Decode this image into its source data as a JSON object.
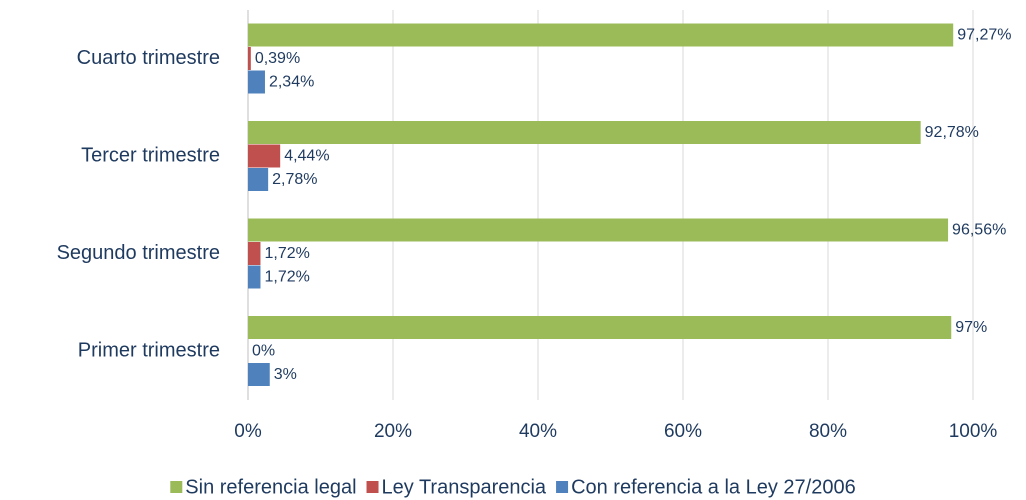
{
  "chart_data": {
    "type": "hbar",
    "categories": [
      "Primer trimestre",
      "Segundo trimestre",
      "Tercer trimestre",
      "Cuarto trimestre"
    ],
    "series": [
      {
        "name": "Sin referencia legal",
        "color": "#9bbb59",
        "values": [
          97,
          96.56,
          92.78,
          97.27
        ],
        "value_labels": [
          "97%",
          "96,56%",
          "92,78%",
          "97,27%"
        ]
      },
      {
        "name": "Ley Transparencia",
        "color": "#c0504d",
        "values": [
          0,
          1.72,
          4.44,
          0.39
        ],
        "value_labels": [
          "0%",
          "1,72%",
          "4,44%",
          "0,39%"
        ]
      },
      {
        "name": "Con referencia a la Ley 27/2006",
        "color": "#4f81bd",
        "values": [
          3,
          1.72,
          2.78,
          2.34
        ],
        "value_labels": [
          "3%",
          "1,72%",
          "2,78%",
          "2,34%"
        ]
      }
    ],
    "xlim": [
      0,
      100
    ],
    "xticks": [
      {
        "value": 0,
        "label": "0%"
      },
      {
        "value": 20,
        "label": "20%"
      },
      {
        "value": 40,
        "label": "40%"
      },
      {
        "value": 60,
        "label": "60%"
      },
      {
        "value": 80,
        "label": "80%"
      },
      {
        "value": 100,
        "label": "100%"
      }
    ],
    "grid": true,
    "legend": "bottom"
  }
}
